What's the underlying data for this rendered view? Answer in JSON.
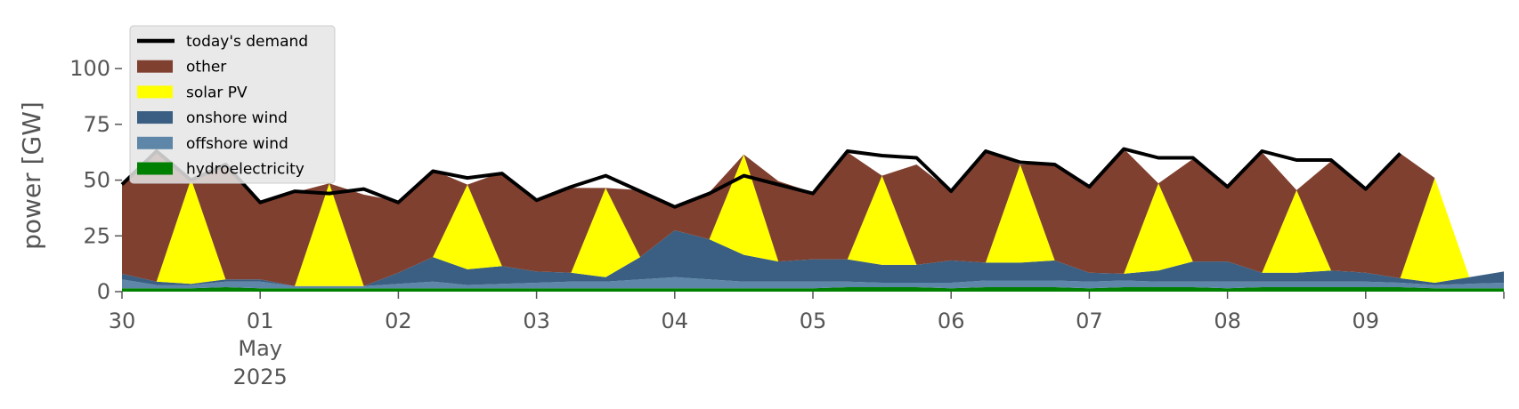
{
  "chart_data": {
    "type": "area",
    "title": "",
    "xlabel": "",
    "ylabel": "power [GW]",
    "ylim": [
      0,
      120
    ],
    "y_ticks": [
      0,
      25,
      50,
      75,
      100
    ],
    "x_range": [
      "2025-04-30T00:00",
      "2025-05-10T00:00"
    ],
    "x_ticks": [
      {
        "date": "2025-04-30",
        "label": "30"
      },
      {
        "date": "2025-05-01",
        "label": "01",
        "sublabel1": "May",
        "sublabel2": "2025"
      },
      {
        "date": "2025-05-02",
        "label": "02"
      },
      {
        "date": "2025-05-03",
        "label": "03"
      },
      {
        "date": "2025-05-04",
        "label": "04"
      },
      {
        "date": "2025-05-05",
        "label": "05"
      },
      {
        "date": "2025-05-06",
        "label": "06"
      },
      {
        "date": "2025-05-07",
        "label": "07"
      },
      {
        "date": "2025-05-08",
        "label": "08"
      },
      {
        "date": "2025-05-09",
        "label": "09"
      }
    ],
    "grid": false,
    "background": "#ffffff",
    "legend_placement": "upper-left",
    "x": [
      "2025-04-30T00:00",
      "2025-04-30T06:00",
      "2025-04-30T12:00",
      "2025-04-30T18:00",
      "2025-05-01T00:00",
      "2025-05-01T06:00",
      "2025-05-01T12:00",
      "2025-05-01T18:00",
      "2025-05-02T00:00",
      "2025-05-02T06:00",
      "2025-05-02T12:00",
      "2025-05-02T18:00",
      "2025-05-03T00:00",
      "2025-05-03T06:00",
      "2025-05-03T12:00",
      "2025-05-03T18:00",
      "2025-05-04T00:00",
      "2025-05-04T06:00",
      "2025-05-04T12:00",
      "2025-05-04T18:00",
      "2025-05-05T00:00",
      "2025-05-05T06:00",
      "2025-05-05T12:00",
      "2025-05-05T18:00",
      "2025-05-06T00:00",
      "2025-05-06T06:00",
      "2025-05-06T12:00",
      "2025-05-06T18:00",
      "2025-05-07T00:00",
      "2025-05-07T06:00",
      "2025-05-07T12:00",
      "2025-05-07T18:00",
      "2025-05-08T00:00",
      "2025-05-08T06:00",
      "2025-05-08T12:00",
      "2025-05-08T18:00",
      "2025-05-09T00:00",
      "2025-05-09T06:00",
      "2025-05-09T12:00",
      "2025-05-09T18:00",
      "2025-05-10T00:00"
    ],
    "demand": [
      48,
      63,
      50,
      57,
      40,
      45,
      44,
      46,
      40,
      54,
      51,
      53,
      41,
      47,
      52,
      45,
      38,
      44,
      52,
      48,
      44,
      63,
      61,
      60,
      45,
      63,
      58,
      57,
      47,
      64,
      60,
      60,
      47,
      63,
      59,
      59,
      46,
      62,
      null,
      null,
      null
    ],
    "series": [
      {
        "name": "hydroelectricity",
        "color": "#008000",
        "values": [
          1.5,
          1.5,
          1.5,
          2,
          1.5,
          1.5,
          1.5,
          1.5,
          1.5,
          1.5,
          1.5,
          1.5,
          1.5,
          1.5,
          1.5,
          1.5,
          1.5,
          1.5,
          1.5,
          1.5,
          1.5,
          2,
          2,
          2,
          1.5,
          2,
          2,
          2,
          1.5,
          2,
          2,
          2,
          1.5,
          2,
          2,
          2,
          2,
          2,
          1.5,
          1.5,
          1.5
        ]
      },
      {
        "name": "offshore wind",
        "color": "#5e86a8",
        "values": [
          4,
          1.5,
          1.5,
          2.5,
          3,
          1,
          1,
          1,
          2,
          3,
          1.5,
          2,
          2.5,
          3,
          3,
          4,
          5,
          4,
          3,
          3,
          3,
          2.5,
          2,
          2,
          2.5,
          3,
          3,
          3,
          3,
          3,
          2.5,
          2.5,
          3,
          2.5,
          2.5,
          2.5,
          2.5,
          2,
          1.5,
          2,
          2.5
        ]
      },
      {
        "name": "onshore wind",
        "color": "#3a5f82",
        "values": [
          2.5,
          1.5,
          0.5,
          1,
          1,
          0,
          0,
          0,
          5,
          11,
          7,
          8,
          5,
          4,
          2,
          10,
          21,
          18,
          12,
          9,
          10,
          10,
          8,
          8,
          10,
          8,
          8,
          9,
          4,
          3,
          5,
          9,
          9,
          4,
          4,
          5,
          4,
          2,
          1,
          3,
          5
        ]
      },
      {
        "name": "solar PV",
        "color": "#ffff00",
        "values": [
          0,
          0,
          47,
          0,
          0,
          0,
          46,
          0,
          0,
          0,
          38,
          0,
          0,
          0,
          40,
          0,
          0,
          0,
          45,
          0,
          0,
          0,
          40,
          0,
          0,
          0,
          44,
          0,
          0,
          0,
          39,
          0,
          0,
          0,
          37,
          0,
          0,
          0,
          47,
          0,
          0
        ]
      },
      {
        "name": "other",
        "color": "#804030",
        "values": [
          40,
          58,
          0,
          51,
          35,
          42,
          0,
          41,
          32,
          39,
          0,
          42,
          32,
          38,
          0,
          30,
          11,
          21,
          0,
          36,
          30,
          48,
          0,
          45,
          31,
          50,
          0,
          43,
          38,
          56,
          0,
          46,
          33,
          54,
          0,
          49,
          37,
          56,
          0,
          0,
          0
        ]
      }
    ]
  },
  "legend": {
    "items": [
      {
        "label": "today's demand",
        "color": "#000000",
        "kind": "line"
      },
      {
        "label": "other",
        "color": "#804030",
        "kind": "patch"
      },
      {
        "label": "solar PV",
        "color": "#ffff00",
        "kind": "patch"
      },
      {
        "label": "onshore wind",
        "color": "#3a5f82",
        "kind": "patch"
      },
      {
        "label": "offshore wind",
        "color": "#5e86a8",
        "kind": "patch"
      },
      {
        "label": "hydroelectricity",
        "color": "#008000",
        "kind": "patch"
      }
    ]
  }
}
